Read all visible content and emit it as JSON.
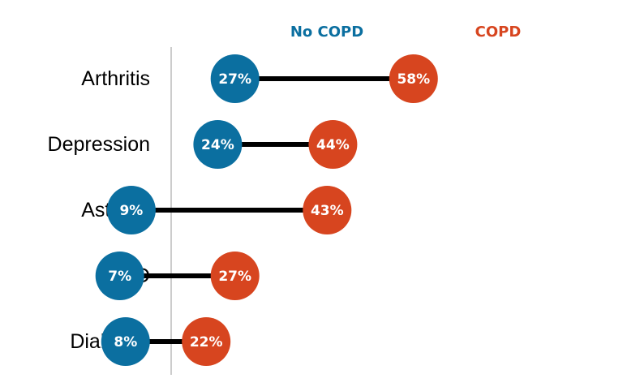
{
  "chart_data": {
    "type": "dumbbell",
    "title": "",
    "xlabel": "",
    "ylabel": "",
    "xlim": [
      0,
      70
    ],
    "grid": false,
    "legend_placement": "top",
    "categories": [
      "Arthritis",
      "Depression",
      "Asthma",
      "CVD",
      "Diabetes"
    ],
    "series": [
      {
        "name": "No COPD",
        "color": "#0b6fa0",
        "values": [
          27,
          24,
          9,
          7,
          8
        ],
        "labels": [
          "27%",
          "24%",
          "9%",
          "7%",
          "8%"
        ]
      },
      {
        "name": "COPD",
        "color": "#d7451f",
        "values": [
          58,
          44,
          43,
          27,
          22
        ],
        "labels": [
          "58%",
          "44%",
          "43%",
          "27%",
          "22%"
        ]
      }
    ],
    "connector_color": "#000000",
    "axis_line_color": "#cccccc"
  }
}
